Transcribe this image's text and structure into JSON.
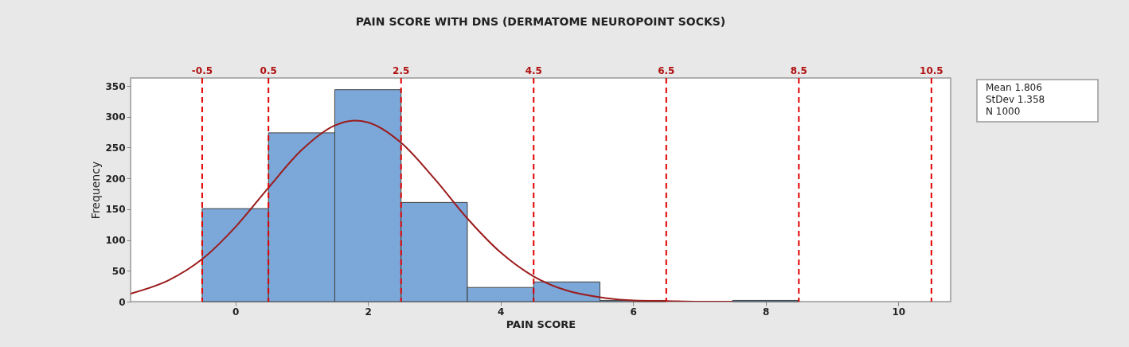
{
  "chart_data": {
    "type": "histogram",
    "title": "PAIN SCORE WITH DNS (DERMATOME NEUROPOINT SOCKS)",
    "xlabel": "PAIN SCORE",
    "ylabel": "Frequency",
    "bins": [
      -0.5,
      0.5,
      1.5,
      2.5,
      3.5,
      4.5,
      5.5,
      6.5,
      7.5,
      8.5,
      9.5,
      10.5
    ],
    "values": [
      151,
      274,
      344,
      161,
      23,
      32,
      2,
      0,
      2,
      0,
      0
    ],
    "color": "#7ba7d9",
    "series": [
      {
        "type": "line",
        "color": "#9b1c1c",
        "x": [
          -1.58,
          -1,
          -0.5,
          0,
          0.5,
          1,
          1.5,
          1.8,
          2,
          2.5,
          3,
          3.5,
          4,
          4.5,
          5,
          5.5,
          6,
          6.5,
          7,
          7.5
        ],
        "values": [
          13,
          35,
          69,
          121,
          185,
          246,
          286,
          294,
          291,
          258,
          200,
          135,
          80,
          41,
          18,
          7,
          2,
          1,
          0,
          0
        ]
      }
    ],
    "xlim": [
      -1.58,
      10.79
    ],
    "ylim": [
      0,
      363
    ],
    "xticks": [
      0,
      2,
      4,
      6,
      8,
      10
    ],
    "yticks": [
      0,
      50,
      100,
      150,
      200,
      250,
      300,
      350
    ],
    "ref_lines": [
      {
        "axis": "x",
        "value": -0.5,
        "label": "-0.5",
        "color": "#e00000",
        "line_style": "dashed"
      },
      {
        "axis": "x",
        "value": 0.5,
        "label": "0.5",
        "color": "#e00000",
        "line_style": "dashed"
      },
      {
        "axis": "x",
        "value": 2.5,
        "label": "2.5",
        "color": "#e00000",
        "line_style": "dashed"
      },
      {
        "axis": "x",
        "value": 4.5,
        "label": "4.5",
        "color": "#e00000",
        "line_style": "dashed"
      },
      {
        "axis": "x",
        "value": 6.5,
        "label": "6.5",
        "color": "#e00000",
        "line_style": "dashed"
      },
      {
        "axis": "x",
        "value": 8.5,
        "label": "8.5",
        "color": "#e00000",
        "line_style": "dashed"
      },
      {
        "axis": "x",
        "value": 10.5,
        "label": "10.5",
        "color": "#e00000",
        "line_style": "dashed"
      }
    ],
    "annotations": [
      "Mean 1.806",
      "StDev 1.358",
      "N 1000"
    ],
    "grid": false
  }
}
